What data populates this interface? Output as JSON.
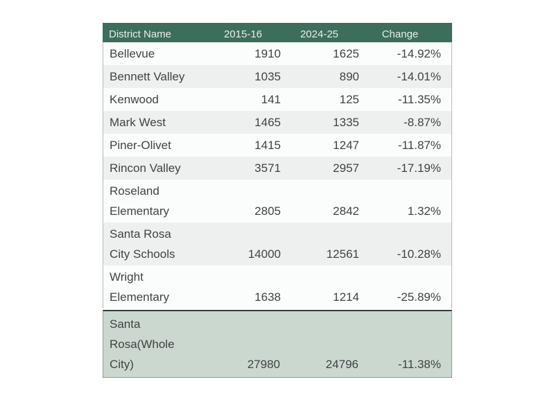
{
  "chart_data": {
    "type": "table",
    "columns": [
      "District Name",
      "2015-16",
      "2024-25",
      "Change"
    ],
    "rows": [
      {
        "district": "Bellevue",
        "y2015": "1910",
        "y2024": "1625",
        "change": "-14.92%"
      },
      {
        "district": "Bennett Valley",
        "y2015": "1035",
        "y2024": "890",
        "change": "-14.01%"
      },
      {
        "district": "Kenwood",
        "y2015": "141",
        "y2024": "125",
        "change": "-11.35%"
      },
      {
        "district": "Mark West",
        "y2015": "1465",
        "y2024": "1335",
        "change": "-8.87%"
      },
      {
        "district": "Piner-Olivet",
        "y2015": "1415",
        "y2024": "1247",
        "change": "-11.87%"
      },
      {
        "district": "Rincon Valley",
        "y2015": "3571",
        "y2024": "2957",
        "change": "-17.19%"
      },
      {
        "district": "Roseland\nElementary",
        "y2015": "2805",
        "y2024": "2842",
        "change": "1.32%"
      },
      {
        "district": "Santa Rosa\nCity Schools",
        "y2015": "14000",
        "y2024": "12561",
        "change": "-10.28%"
      },
      {
        "district": "Wright\nElementary",
        "y2015": "1638",
        "y2024": "1214",
        "change": "-25.89%"
      }
    ],
    "summary": {
      "district": "Santa\nRosa(Whole\nCity)",
      "y2015": "27980",
      "y2024": "24796",
      "change": "-11.38%"
    },
    "layout_hints": {
      "legend": "none",
      "grid": "zebra-striped rows, summary row highlighted"
    }
  },
  "colors": {
    "header_bg": "#3d6e5c",
    "header_text": "#e7efe9",
    "row_bg": "#fbfcfc",
    "row_stripe_bg": "#edf0ef",
    "summary_bg": "#cbd8cf",
    "summary_top_border": "#333d37",
    "body_border": "#b4bab6",
    "text": "#3f4345"
  }
}
